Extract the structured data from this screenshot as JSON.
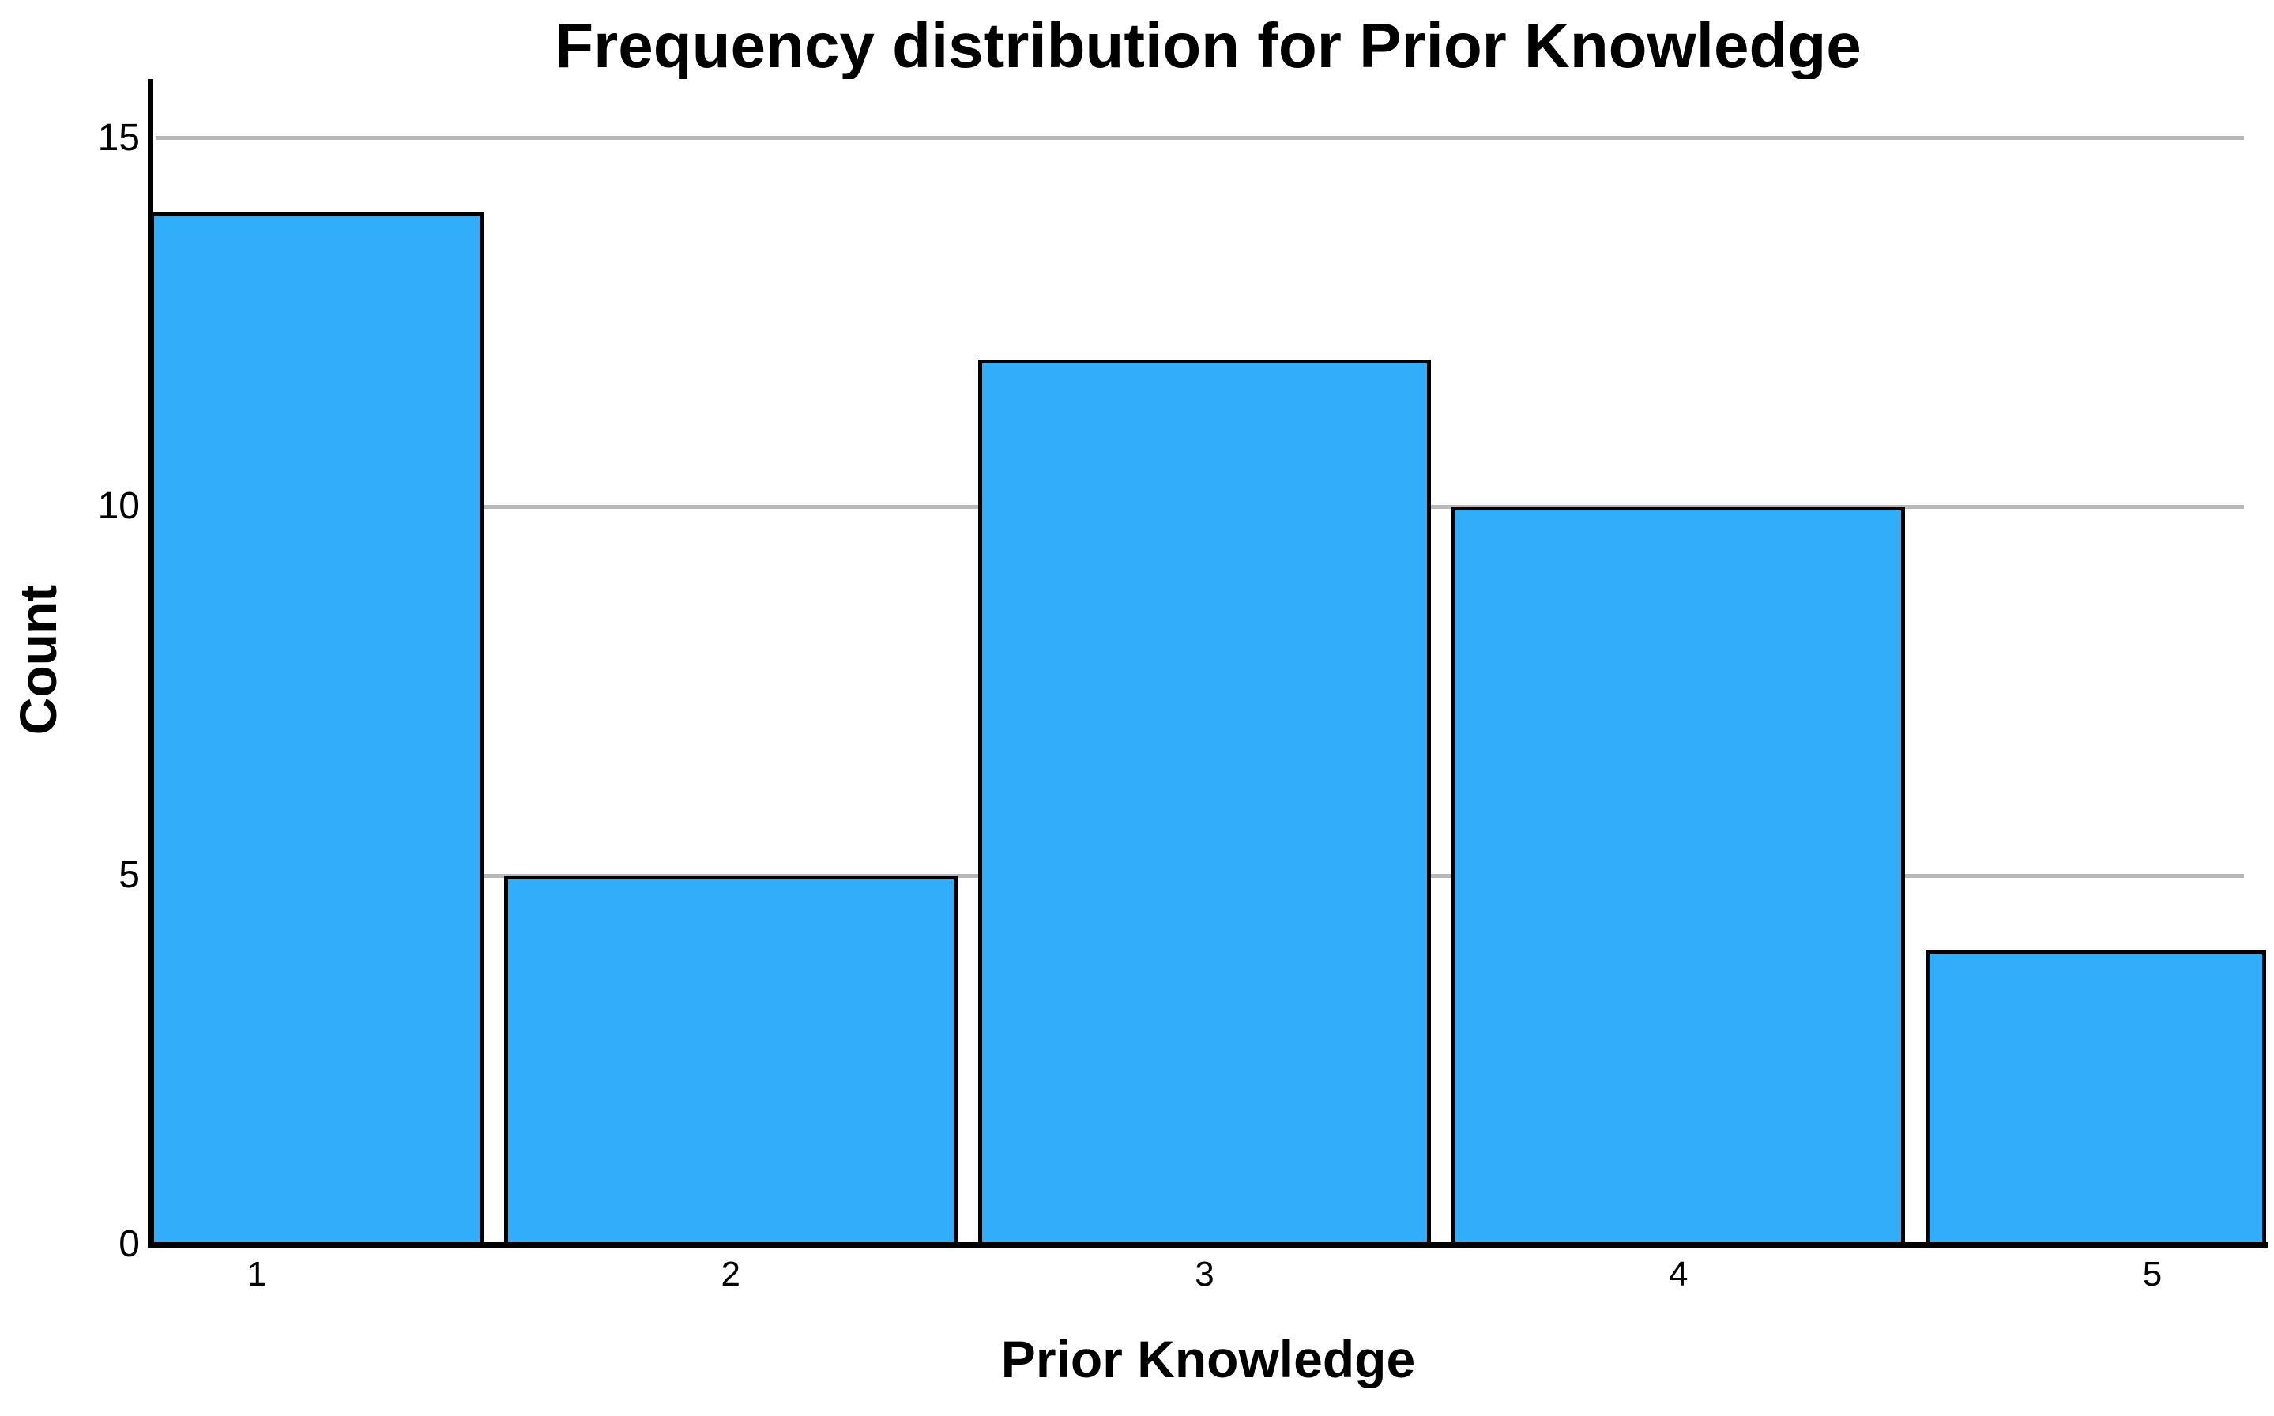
{
  "chart_data": {
    "type": "bar",
    "subtype": "histogram",
    "title": "Frequency distribution for Prior Knowledge",
    "xlabel": "Prior Knowledge",
    "ylabel": "Count",
    "categories": [
      1,
      2,
      3,
      4,
      5
    ],
    "values": [
      14,
      5,
      12,
      10,
      4
    ],
    "xticks": [
      1,
      2,
      3,
      4,
      5
    ],
    "yticks": [
      0,
      5,
      10,
      15
    ],
    "xlim": [
      0.775,
      5.24
    ],
    "ylim": [
      0,
      15.8
    ],
    "bin_width": 1,
    "grid": "horizontal-only",
    "legend": "none",
    "colors": {
      "bar_fill": "#32ADFA",
      "bar_border": "#000000",
      "gridline": "#B8B8BB",
      "axis": "#000000",
      "text": "#000000",
      "background": "#FFFFFF"
    }
  }
}
